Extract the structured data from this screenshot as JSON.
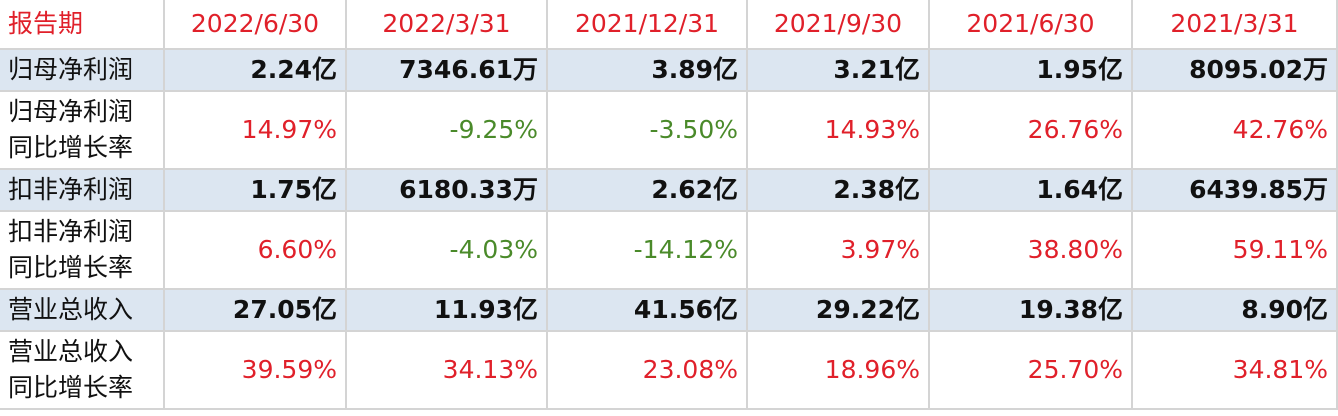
{
  "table": {
    "header": [
      "报告期",
      "2022/6/30",
      "2022/3/31",
      "2021/12/31",
      "2021/9/30",
      "2021/6/30",
      "2021/3/31"
    ],
    "rows": [
      {
        "label": [
          "归母净利润"
        ],
        "kind": "amount",
        "cells": [
          "2.24亿",
          "7346.61万",
          "3.89亿",
          "3.21亿",
          "1.95亿",
          "8095.02万"
        ]
      },
      {
        "label": [
          "归母净利润",
          "同比增长率"
        ],
        "kind": "ratio",
        "cells": [
          "14.97%",
          "-9.25%",
          "-3.50%",
          "14.93%",
          "26.76%",
          "42.76%"
        ]
      },
      {
        "label": [
          "扣非净利润"
        ],
        "kind": "amount",
        "cells": [
          "1.75亿",
          "6180.33万",
          "2.62亿",
          "2.38亿",
          "1.64亿",
          "6439.85万"
        ]
      },
      {
        "label": [
          "扣非净利润",
          "同比增长率"
        ],
        "kind": "ratio",
        "cells": [
          "6.60%",
          "-4.03%",
          "-14.12%",
          "3.97%",
          "38.80%",
          "59.11%"
        ]
      },
      {
        "label": [
          "营业总收入"
        ],
        "kind": "amount",
        "cells": [
          "27.05亿",
          "11.93亿",
          "41.56亿",
          "29.22亿",
          "19.38亿",
          "8.90亿"
        ]
      },
      {
        "label": [
          "营业总收入",
          "同比增长率"
        ],
        "kind": "ratio",
        "cells": [
          "39.59%",
          "34.13%",
          "23.08%",
          "18.96%",
          "25.70%",
          "34.81%"
        ]
      }
    ],
    "header_color": "#e0202a",
    "positive_color": "#e0202a",
    "negative_color": "#4a8a2a",
    "amount_background": "#dce6f1"
  }
}
